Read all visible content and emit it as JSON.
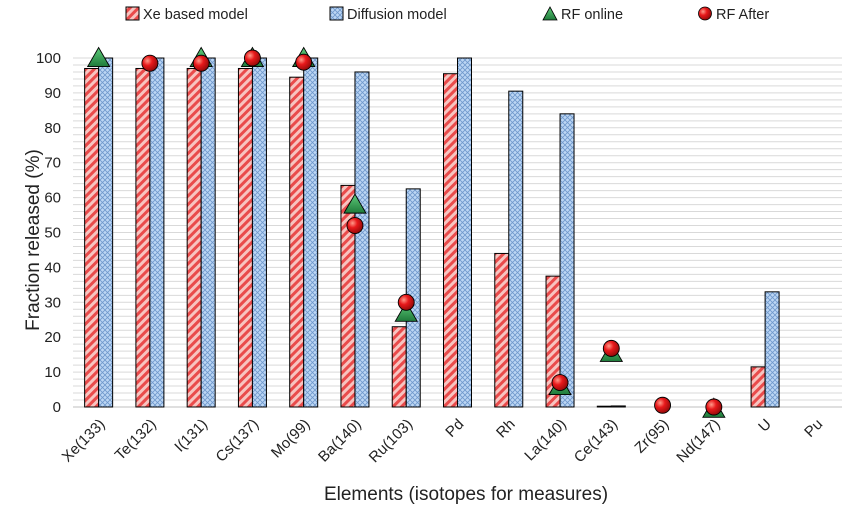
{
  "chart_data": {
    "type": "bar",
    "title": "",
    "xlabel": "Elements (isotopes for measures)",
    "ylabel": "Fraction released (%)",
    "ylim": [
      0,
      100
    ],
    "yticks": [
      0,
      10,
      20,
      30,
      40,
      50,
      60,
      70,
      80,
      90,
      100
    ],
    "grid": true,
    "legend_position": "top",
    "categories": [
      "Xe(133)",
      "Te(132)",
      "I(131)",
      "Cs(137)",
      "Mo(99)",
      "Ba(140)",
      "Ru(103)",
      "Pd",
      "Rh",
      "La(140)",
      "Ce(143)",
      "Zr(95)",
      "Nd(147)",
      "U",
      "Pu"
    ],
    "series": [
      {
        "name": "Xe based model",
        "kind": "bar",
        "color": "#f28b82",
        "values": [
          97,
          97,
          97,
          97,
          94.5,
          63.5,
          23,
          95.5,
          44,
          37.5,
          0.2,
          null,
          null,
          11.5,
          null
        ]
      },
      {
        "name": "Diffusion model",
        "kind": "bar",
        "color": "#a8c8ee",
        "values": [
          100,
          100,
          100,
          100,
          100,
          96,
          62.5,
          100,
          90.5,
          84,
          0.3,
          null,
          null,
          33,
          null
        ]
      },
      {
        "name": "RF online",
        "kind": "marker",
        "marker": "triangle",
        "color": "#2e9e4f",
        "values": [
          100,
          null,
          100,
          100,
          100,
          58,
          27,
          null,
          null,
          6,
          15.5,
          null,
          -0.5,
          null,
          null
        ]
      },
      {
        "name": "RF After",
        "kind": "marker",
        "marker": "circle",
        "color": "#e8191b",
        "values": [
          null,
          98.5,
          98.5,
          100,
          98.8,
          52,
          30,
          null,
          null,
          7,
          16.8,
          0.5,
          0,
          null,
          null
        ]
      }
    ]
  }
}
